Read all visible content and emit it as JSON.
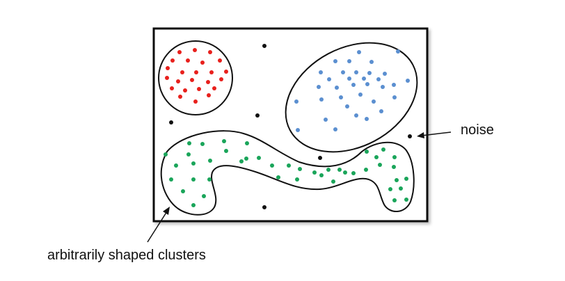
{
  "labels": {
    "noise": "noise",
    "clusters": "arbitrarily shaped clusters"
  },
  "colors": {
    "red_cluster": "#e8201c",
    "blue_cluster": "#5b8fd0",
    "green_cluster": "#1aa55a",
    "noise": "#111111",
    "outline": "#111111"
  }
}
